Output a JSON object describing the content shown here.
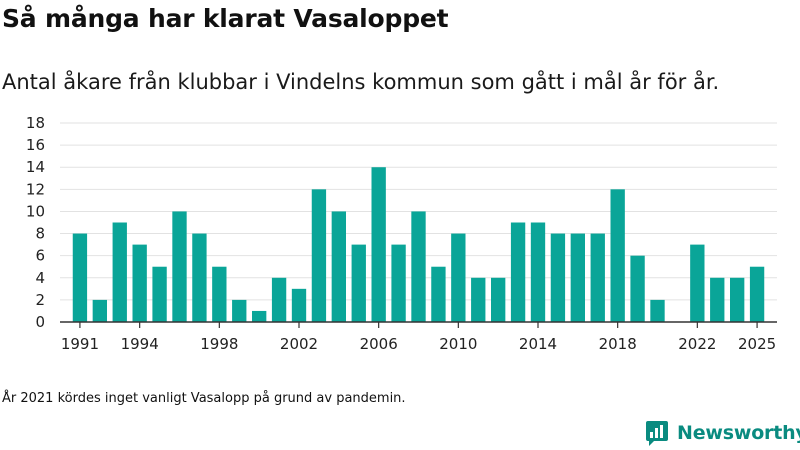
{
  "header": {
    "title": "Så många har klarat Vasaloppet",
    "subtitle": "Antal åkare från klubbar i Vindelns kommun som gått i mål år för år."
  },
  "footnote": "År 2021 kördes inget vanligt Vasalopp på grund av pandemin.",
  "brand": {
    "name": "Newsworthy",
    "color": "#0a8b80",
    "icon": "newsworthy-logo-icon"
  },
  "colors": {
    "bar": "#0aa598",
    "grid": "#e2e2e2",
    "axis": "#333333"
  },
  "chart_data": {
    "type": "bar",
    "title": "Så många har klarat Vasaloppet",
    "xlabel": "",
    "ylabel": "",
    "ylim": [
      0,
      18
    ],
    "yticks": [
      0,
      2,
      4,
      6,
      8,
      10,
      12,
      14,
      16,
      18
    ],
    "grid": true,
    "categories": [
      1991,
      1992,
      1993,
      1994,
      1995,
      1996,
      1997,
      1998,
      1999,
      2000,
      2001,
      2002,
      2003,
      2004,
      2005,
      2006,
      2007,
      2008,
      2009,
      2010,
      2011,
      2012,
      2013,
      2014,
      2015,
      2016,
      2017,
      2018,
      2019,
      2020,
      2021,
      2022,
      2023,
      2024,
      2025
    ],
    "values": [
      8,
      2,
      9,
      7,
      5,
      10,
      8,
      5,
      2,
      1,
      4,
      3,
      12,
      10,
      7,
      14,
      7,
      10,
      5,
      8,
      4,
      4,
      9,
      9,
      8,
      8,
      8,
      12,
      6,
      2,
      null,
      7,
      4,
      4,
      5
    ],
    "x_tick_labels": [
      "1991",
      "1994",
      "1998",
      "2002",
      "2006",
      "2010",
      "2014",
      "2018",
      "2022",
      "2025"
    ]
  }
}
